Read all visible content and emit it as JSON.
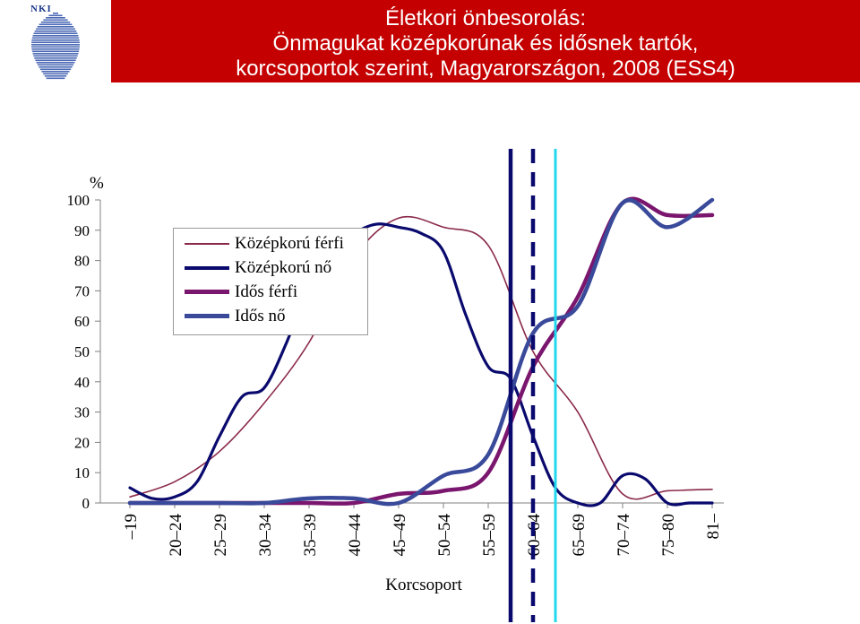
{
  "header": {
    "logo_text": "NKI",
    "title_lines": [
      "Életkori önbesorolás:",
      "Önmagukat középkorúnak és idősnek tartók,",
      "korcsoportok szerint, Magyarországon, 2008 (ESS4)"
    ]
  },
  "colors": {
    "header_bg": "#c40000",
    "kozepkoru_ferfi": "#8a2a4a",
    "kozepkoru_no": "#0a0a6e",
    "idos_ferfi": "#7a166e",
    "idos_no": "#3a4a9a",
    "marker_solid": "#0a0a6e",
    "marker_dashed": "#0a0a6e",
    "marker_cyan": "#22d8ee"
  },
  "chart_data": {
    "type": "line",
    "xlabel": "Korcsoport",
    "ylabel": "%",
    "ylim": [
      0,
      100
    ],
    "yticks": [
      0,
      10,
      20,
      30,
      40,
      50,
      60,
      70,
      80,
      90,
      100
    ],
    "grid": false,
    "legend_position": "upper-left",
    "categories": [
      "–19",
      "20–24",
      "25–29",
      "30–34",
      "35–39",
      "40–44",
      "45–49",
      "50–54",
      "55–59",
      "60–64",
      "65–69",
      "70–74",
      "75–80",
      "81–"
    ],
    "series": [
      {
        "name": "Középkorú férfi",
        "x": [
          0,
          1,
          2,
          3,
          4,
          5,
          6,
          7,
          8,
          9,
          10,
          11,
          12,
          13
        ],
        "values": [
          2,
          7,
          17,
          33,
          53,
          81,
          94,
          91,
          85,
          50,
          30,
          3,
          4,
          4.5
        ]
      },
      {
        "name": "Középkorú nő",
        "x": [
          0,
          0.5,
          1,
          1.5,
          2,
          2.5,
          3,
          3.5,
          4,
          4.5,
          5,
          5.5,
          6,
          6.5,
          7,
          7.5,
          8,
          8.5,
          9,
          9.5,
          10,
          10.5,
          11,
          11.5,
          12,
          12.5,
          13
        ],
        "values": [
          5,
          1.5,
          2,
          7,
          22,
          35,
          38,
          53,
          72,
          84,
          89,
          92,
          91,
          89,
          83,
          62,
          45,
          41,
          22,
          5,
          0,
          0,
          9,
          8,
          0,
          0,
          0
        ]
      },
      {
        "name": "Idős férfi",
        "x": [
          0,
          1,
          2,
          3,
          4,
          5,
          6,
          7,
          8,
          9,
          10,
          11,
          12,
          13
        ],
        "values": [
          0,
          0,
          0,
          0,
          0,
          0,
          3,
          4,
          10,
          45,
          68,
          99,
          95,
          95
        ]
      },
      {
        "name": "Idős nő",
        "x": [
          0,
          1,
          2,
          3,
          4,
          5,
          6,
          7,
          8,
          9,
          10,
          11,
          12,
          13
        ],
        "values": [
          0,
          0,
          0,
          0,
          1.5,
          1.5,
          0,
          9,
          16,
          56,
          65,
          99,
          91,
          100
        ]
      }
    ],
    "vertical_markers": [
      {
        "x": 8.5,
        "style": "solid"
      },
      {
        "x": 9.0,
        "style": "dashed"
      },
      {
        "x": 9.5,
        "style": "cyan"
      }
    ]
  }
}
